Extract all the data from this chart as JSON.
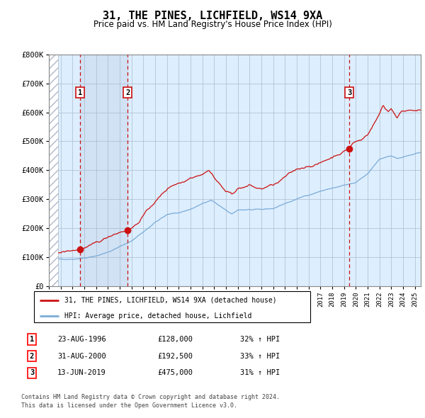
{
  "title": "31, THE PINES, LICHFIELD, WS14 9XA",
  "subtitle": "Price paid vs. HM Land Registry's House Price Index (HPI)",
  "ylim": [
    0,
    800000
  ],
  "yticks": [
    0,
    100000,
    200000,
    300000,
    400000,
    500000,
    600000,
    700000,
    800000
  ],
  "ytick_labels": [
    "£0",
    "£100K",
    "£200K",
    "£300K",
    "£400K",
    "£500K",
    "£600K",
    "£700K",
    "£800K"
  ],
  "hpi_color": "#7aacd6",
  "price_color": "#cc1111",
  "vline_color": "#cc1111",
  "bg_color": "#ddeeff",
  "hatch_color": "#ccccdd",
  "grid_color": "#aabbcc",
  "transactions": [
    {
      "label": 1,
      "date": "23-AUG-1996",
      "x": 1996.65,
      "price": 128000,
      "pct": "32%",
      "dir": "↑"
    },
    {
      "label": 2,
      "date": "31-AUG-2000",
      "x": 2000.67,
      "price": 192500,
      "pct": "33%",
      "dir": "↑"
    },
    {
      "label": 3,
      "date": "13-JUN-2019",
      "x": 2019.45,
      "price": 475000,
      "pct": "31%",
      "dir": "↑"
    }
  ],
  "legend_price_label": "31, THE PINES, LICHFIELD, WS14 9XA (detached house)",
  "legend_hpi_label": "HPI: Average price, detached house, Lichfield",
  "footnote_line1": "Contains HM Land Registry data © Crown copyright and database right 2024.",
  "footnote_line2": "This data is licensed under the Open Government Licence v3.0.",
  "xmin": 1994.0,
  "xmax": 2025.5,
  "xstart_data": 1994.75
}
